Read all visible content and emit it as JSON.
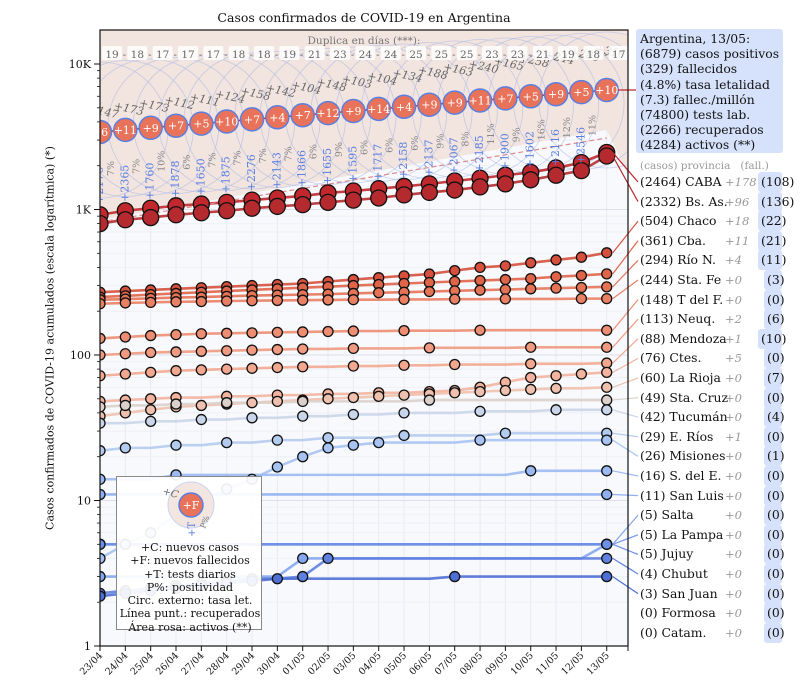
{
  "chart_data": {
    "type": "line",
    "title": "Casos confirmados de COVID-19 en Argentina",
    "ylabel": "Casos confirmados de COVID-19 acumulados (escala logarítmica) (*)",
    "xlabel": "",
    "yscale": "log",
    "ylim": [
      1,
      20000
    ],
    "y_ticks": [
      {
        "value": 1,
        "label": "1"
      },
      {
        "value": 10,
        "label": "10"
      },
      {
        "value": 100,
        "label": "100"
      },
      {
        "value": 1000,
        "label": "1K"
      },
      {
        "value": 10000,
        "label": "10K"
      }
    ],
    "x": [
      "23/04",
      "24/04",
      "25/04",
      "26/04",
      "27/04",
      "28/04",
      "29/04",
      "30/04",
      "01/05",
      "02/05",
      "03/05",
      "04/05",
      "05/05",
      "06/05",
      "07/05",
      "08/05",
      "09/05",
      "10/05",
      "11/05",
      "12/05",
      "13/05"
    ],
    "doubling": {
      "label": "Duplica en días (***):",
      "values": [
        19,
        18,
        17,
        17,
        17,
        18,
        18,
        19,
        21,
        23,
        24,
        24,
        25,
        25,
        25,
        23,
        23,
        21,
        19,
        18,
        17
      ]
    },
    "national": {
      "name": "Argentina",
      "new_cases": [
        147,
        173,
        173,
        112,
        111,
        124,
        158,
        142,
        104,
        148,
        103,
        104,
        134,
        188,
        163,
        240,
        165,
        258,
        244,
        285,
        316
      ],
      "new_deaths": [
        6,
        11,
        9,
        7,
        5,
        10,
        7,
        4,
        7,
        12,
        9,
        14,
        4,
        9,
        9,
        11,
        7,
        5,
        9,
        5,
        10
      ],
      "daily_tests": [
        2176,
        2365,
        1760,
        1878,
        1650,
        1875,
        2276,
        2143,
        1866,
        1655,
        1595,
        1717,
        2158,
        2137,
        2067,
        2185,
        1900,
        1602,
        2116,
        2546,
        null
      ],
      "positivity_pct": [
        7,
        7,
        10,
        6,
        7,
        7,
        7,
        7,
        6,
        9,
        6,
        6,
        6,
        9,
        8,
        11,
        9,
        16,
        12,
        11,
        null
      ]
    },
    "series": [
      {
        "name": "CABA",
        "color": "#c0282d",
        "approx_values": [
          920,
          980,
          1020,
          1060,
          1090,
          1120,
          1160,
          1200,
          1240,
          1300,
          1340,
          1390,
          1440,
          1500,
          1570,
          1640,
          1720,
          1800,
          1930,
          2100,
          2464
        ]
      },
      {
        "name": "Bs. As.",
        "color": "#b52a2e",
        "approx_values": [
          800,
          850,
          880,
          920,
          950,
          980,
          1020,
          1050,
          1080,
          1120,
          1160,
          1200,
          1260,
          1310,
          1360,
          1430,
          1500,
          1600,
          1720,
          1850,
          2332
        ]
      },
      {
        "name": "Chaco",
        "color": "#d6503d",
        "approx_values": [
          270,
          275,
          280,
          285,
          290,
          295,
          300,
          305,
          310,
          320,
          330,
          340,
          350,
          360,
          380,
          400,
          410,
          430,
          450,
          470,
          504
        ]
      },
      {
        "name": "Cba.",
        "color": "#e06448",
        "approx_values": [
          250,
          255,
          260,
          265,
          270,
          275,
          280,
          285,
          290,
          295,
          300,
          305,
          310,
          315,
          320,
          325,
          330,
          335,
          345,
          352,
          361
        ]
      },
      {
        "name": "Río N.",
        "color": "#e57356",
        "approx_values": [
          240,
          242,
          245,
          248,
          250,
          253,
          256,
          258,
          260,
          262,
          265,
          268,
          270,
          273,
          276,
          279,
          282,
          285,
          288,
          291,
          294
        ]
      },
      {
        "name": "Sta. Fe",
        "color": "#e98064",
        "approx_values": [
          225,
          228,
          230,
          232,
          233,
          235,
          236,
          237,
          238,
          239,
          240,
          240,
          241,
          241,
          242,
          242,
          243,
          243,
          243,
          244,
          244
        ]
      },
      {
        "name": "T del F.",
        "color": "#ed8d72",
        "approx_values": [
          130,
          133,
          136,
          138,
          140,
          141,
          142,
          143,
          144,
          145,
          146,
          146,
          147,
          147,
          147,
          148,
          148,
          148,
          148,
          148,
          148
        ]
      },
      {
        "name": "Neuq.",
        "color": "#f09a81",
        "approx_values": [
          100,
          102,
          104,
          105,
          106,
          107,
          108,
          109,
          110,
          110,
          111,
          111,
          111,
          112,
          112,
          112,
          112,
          113,
          113,
          113,
          113
        ]
      },
      {
        "name": "Mendoza",
        "color": "#f2a78f",
        "approx_values": [
          72,
          74,
          76,
          78,
          79,
          80,
          81,
          82,
          83,
          83,
          84,
          84,
          85,
          85,
          86,
          86,
          86,
          87,
          87,
          87,
          88
        ]
      },
      {
        "name": "Ctes.",
        "color": "#f3b39e",
        "approx_values": [
          48,
          49,
          50,
          51,
          51,
          52,
          52,
          53,
          53,
          54,
          54,
          55,
          55,
          56,
          57,
          60,
          65,
          70,
          72,
          74,
          76
        ]
      },
      {
        "name": "La Rioja",
        "color": "#eec0ad",
        "approx_values": [
          38,
          40,
          42,
          44,
          45,
          46,
          47,
          48,
          49,
          50,
          51,
          52,
          53,
          54,
          55,
          56,
          57,
          58,
          59,
          59,
          60
        ]
      },
      {
        "name": "Sta. Cruz",
        "color": "#dcd0cb",
        "approx_values": [
          44,
          45,
          45,
          46,
          46,
          47,
          47,
          47,
          48,
          48,
          48,
          48,
          48,
          49,
          49,
          49,
          49,
          49,
          49,
          49,
          49
        ]
      },
      {
        "name": "Tucumán",
        "color": "#c9d5e8",
        "approx_values": [
          34,
          34,
          35,
          35,
          36,
          36,
          37,
          37,
          38,
          38,
          39,
          39,
          40,
          40,
          40,
          41,
          41,
          41,
          42,
          42,
          42
        ]
      },
      {
        "name": "E. Ríos",
        "color": "#b4cbf0",
        "approx_values": [
          22,
          23,
          23,
          24,
          24,
          25,
          25,
          26,
          26,
          27,
          27,
          27,
          28,
          28,
          28,
          28,
          29,
          29,
          29,
          29,
          29
        ]
      },
      {
        "name": "Misiones",
        "color": "#a6c3f3",
        "approx_values": [
          4,
          5,
          6,
          8,
          10,
          12,
          14,
          17,
          20,
          23,
          24,
          25,
          25,
          25,
          25,
          26,
          26,
          26,
          26,
          26,
          26
        ]
      },
      {
        "name": "S. del E.",
        "color": "#9bbaf3",
        "approx_values": [
          14,
          14,
          14,
          15,
          15,
          15,
          15,
          15,
          15,
          15,
          15,
          15,
          15,
          15,
          15,
          15,
          15,
          16,
          16,
          16,
          16
        ]
      },
      {
        "name": "San Luis",
        "color": "#8eb0f2",
        "approx_values": [
          11,
          11,
          11,
          11,
          11,
          11,
          11,
          11,
          11,
          11,
          11,
          11,
          11,
          11,
          11,
          11,
          11,
          11,
          11,
          11,
          11
        ]
      },
      {
        "name": "Salta",
        "color": "#84a6ef",
        "approx_values": [
          3,
          3,
          3,
          3,
          3,
          3,
          3,
          3,
          4,
          4,
          4,
          4,
          4,
          4,
          4,
          4,
          4,
          4,
          4,
          4,
          5
        ]
      },
      {
        "name": "La Pampa",
        "color": "#799bec",
        "approx_values": [
          5,
          5,
          5,
          5,
          5,
          5,
          5,
          5,
          5,
          5,
          5,
          5,
          5,
          5,
          5,
          5,
          5,
          5,
          5,
          5,
          5
        ]
      },
      {
        "name": "Jujuy",
        "color": "#6b8ee6",
        "approx_values": [
          5,
          5,
          5,
          5,
          5,
          5,
          5,
          5,
          5,
          5,
          5,
          5,
          5,
          5,
          5,
          5,
          5,
          5,
          5,
          5,
          5
        ]
      },
      {
        "name": "Chubut",
        "color": "#5e80df",
        "approx_values": [
          2.3,
          2.4,
          2.5,
          2.6,
          2.7,
          2.8,
          2.9,
          2.9,
          3,
          4,
          4,
          4,
          4,
          4,
          4,
          4,
          4,
          4,
          4,
          4,
          4
        ]
      },
      {
        "name": "San Juan",
        "color": "#4e6fd5",
        "approx_values": [
          2.2,
          2.3,
          2.4,
          2.5,
          2.6,
          2.7,
          2.8,
          2.9,
          2.9,
          2.9,
          2.9,
          2.9,
          2.9,
          2.9,
          3,
          3,
          3,
          3,
          3,
          3,
          3
        ]
      },
      {
        "name": "Formosa",
        "color": "#4060cc",
        "approx_values": [
          0,
          0,
          0,
          0,
          0,
          0,
          0,
          0,
          0,
          0,
          0,
          0,
          0,
          0,
          0,
          0,
          0,
          0,
          0,
          0,
          0
        ]
      },
      {
        "name": "Catam.",
        "color": "#3552c2",
        "approx_values": [
          0,
          0,
          0,
          0,
          0,
          0,
          0,
          0,
          0,
          0,
          0,
          0,
          0,
          0,
          0,
          0,
          0,
          0,
          0,
          0,
          0
        ]
      }
    ],
    "legend_placement": "right",
    "grid": true
  },
  "summary": {
    "lines": [
      "Argentina, 13/05:",
      "(6879) casos positivos",
      "(329) fallecidos",
      "(4.8%) tasa letalidad",
      "(7.3) fallec./millón",
      "(74800) tests lab.",
      "(2266) recuperados",
      "(4284) activos (**)"
    ]
  },
  "provinces_header": "(casos) provincia   (fall.)",
  "provinces": [
    {
      "label": "(2464) CABA",
      "new": "+178",
      "fall": "(108)",
      "color": "#c0282d"
    },
    {
      "label": "(2332) Bs. As.",
      "new": "+96",
      "fall": "(136)",
      "color": "#b52a2e"
    },
    {
      "label": "(504) Chaco",
      "new": "+18",
      "fall": "(22)",
      "color": "#d6503d"
    },
    {
      "label": "(361) Cba.",
      "new": "+11",
      "fall": "(21)",
      "color": "#e06448"
    },
    {
      "label": "(294) Río N.",
      "new": "+4",
      "fall": "(11)",
      "color": "#e57356"
    },
    {
      "label": "(244) Sta. Fe",
      "new": "+0",
      "fall": "(3)",
      "color": "#e98064"
    },
    {
      "label": "(148) T del F.",
      "new": "+0",
      "fall": "(0)",
      "color": "#ed8d72"
    },
    {
      "label": "(113) Neuq.",
      "new": "+2",
      "fall": "(6)",
      "color": "#f09a81"
    },
    {
      "label": "(88) Mendoza",
      "new": "+1",
      "fall": "(10)",
      "color": "#f2a78f"
    },
    {
      "label": "(76) Ctes.",
      "new": "+5",
      "fall": "(0)",
      "color": "#f3b39e"
    },
    {
      "label": "(60) La Rioja",
      "new": "+0",
      "fall": "(7)",
      "color": "#eec0ad"
    },
    {
      "label": "(49) Sta. Cruz",
      "new": "+0",
      "fall": "(0)",
      "color": "#dcd0cb"
    },
    {
      "label": "(42) Tucumán",
      "new": "+0",
      "fall": "(4)",
      "color": "#c9d5e8"
    },
    {
      "label": "(29) E. Ríos",
      "new": "+1",
      "fall": "(0)",
      "color": "#b4cbf0"
    },
    {
      "label": "(26) Misiones",
      "new": "+0",
      "fall": "(1)",
      "color": "#a6c3f3"
    },
    {
      "label": "(16) S. del E.",
      "new": "+0",
      "fall": "(0)",
      "color": "#9bbaf3"
    },
    {
      "label": "(11) San Luis",
      "new": "+0",
      "fall": "(0)",
      "color": "#8eb0f2"
    },
    {
      "label": "(5) Salta",
      "new": "+0",
      "fall": "(0)",
      "color": "#84a6ef"
    },
    {
      "label": "(5) La Pampa",
      "new": "+0",
      "fall": "(0)",
      "color": "#799bec"
    },
    {
      "label": "(5) Jujuy",
      "new": "+0",
      "fall": "(0)",
      "color": "#6b8ee6"
    },
    {
      "label": "(4) Chubut",
      "new": "+0",
      "fall": "(0)",
      "color": "#5e80df"
    },
    {
      "label": "(3) San Juan",
      "new": "+0",
      "fall": "(0)",
      "color": "#4e6fd5"
    },
    {
      "label": "(0) Formosa",
      "new": "+0",
      "fall": "(0)",
      "color": null
    },
    {
      "label": "(0) Catam.",
      "new": "+0",
      "fall": "(0)",
      "color": null
    }
  ],
  "legend": {
    "sample_c": "+C",
    "sample_f": "+F",
    "sample_t": "+T",
    "sample_p": "P%",
    "lines": [
      "+C: nuevos casos",
      "+F: nuevos fallecidos",
      "+T: tests diarios",
      "P%: positividad",
      "Circ. externo: tasa let.",
      "Línea punt.: recuperados",
      "Área rosa: activos (**)"
    ]
  },
  "colors": {
    "national_fill": "#e8735a",
    "national_stroke": "#5b7fe0",
    "tests_text": "#5b7fe0",
    "active_area": "#f0e0da",
    "summary_bg": "#d6e2fb"
  }
}
